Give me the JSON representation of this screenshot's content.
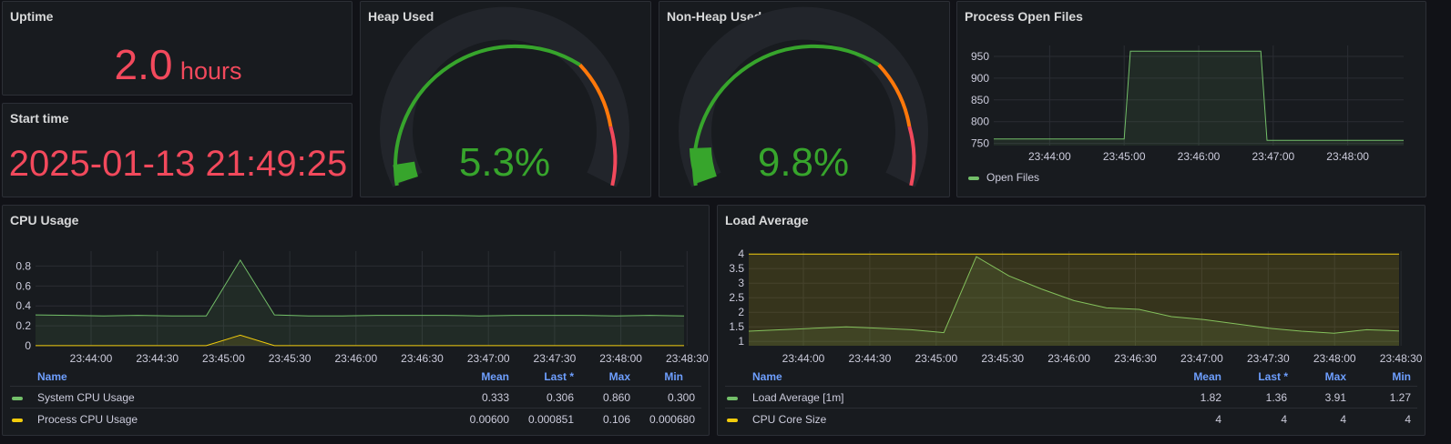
{
  "uptime": {
    "title": "Uptime",
    "value": "2.0",
    "unit": "hours"
  },
  "start_time": {
    "title": "Start time",
    "value": "2025-01-13 21:49:25"
  },
  "heap": {
    "title": "Heap Used",
    "value": "5.3%"
  },
  "nonheap": {
    "title": "Non-Heap Used",
    "value": "9.8%"
  },
  "colors": {
    "green": "#37a52c",
    "red": "#f2495c",
    "yellow": "#f2cc0c",
    "blue": "#6e9fff",
    "orange": "#ff780a"
  },
  "open_files": {
    "title": "Process Open Files",
    "legend": "Open Files",
    "chart_data": {
      "type": "line",
      "y_ticks": [
        "950",
        "900",
        "850",
        "800",
        "750"
      ],
      "x_ticks": [
        "23:44:00",
        "23:45:00",
        "23:46:00",
        "23:47:00",
        "23:48:00"
      ],
      "series": [
        {
          "name": "Open Files",
          "x": [
            "23:43:15",
            "23:45:00",
            "23:45:05",
            "23:45:50",
            "23:46:50",
            "23:46:55",
            "23:48:45"
          ],
          "values": [
            760,
            760,
            962,
            962,
            962,
            757,
            757
          ]
        }
      ],
      "ylim": [
        745,
        975
      ]
    }
  },
  "cpu": {
    "title": "CPU Usage",
    "chart_data": {
      "type": "area",
      "y_ticks": [
        "0.8",
        "0.6",
        "0.4",
        "0.2",
        "0"
      ],
      "x_ticks": [
        "23:44:00",
        "23:44:30",
        "23:45:00",
        "23:45:30",
        "23:46:00",
        "23:46:30",
        "23:47:00",
        "23:47:30",
        "23:48:00",
        "23:48:30"
      ],
      "series": [
        {
          "name": "System CPU Usage",
          "values": [
            0.31,
            0.305,
            0.3,
            0.305,
            0.3,
            0.3,
            0.86,
            0.31,
            0.3,
            0.3,
            0.305,
            0.305,
            0.305,
            0.3,
            0.305,
            0.305,
            0.305,
            0.3,
            0.305,
            0.3
          ]
        },
        {
          "name": "Process CPU Usage",
          "values": [
            0.001,
            0.001,
            0.001,
            0.001,
            0.001,
            0.001,
            0.106,
            0.001,
            0.001,
            0.001,
            0.001,
            0.001,
            0.001,
            0.001,
            0.001,
            0.001,
            0.001,
            0.001,
            0.001,
            0.001
          ]
        }
      ],
      "ylim": [
        0,
        0.95
      ]
    },
    "table": {
      "headers": {
        "name": "Name",
        "mean": "Mean",
        "last": "Last *",
        "max": "Max",
        "min": "Min"
      },
      "rows": [
        {
          "name": "System CPU Usage",
          "mean": "0.333",
          "last": "0.306",
          "max": "0.860",
          "min": "0.300"
        },
        {
          "name": "Process CPU Usage",
          "mean": "0.00600",
          "last": "0.000851",
          "max": "0.106",
          "min": "0.000680"
        }
      ]
    }
  },
  "load": {
    "title": "Load Average",
    "chart_data": {
      "type": "area",
      "y_ticks": [
        "4",
        "3.5",
        "3",
        "2.5",
        "2",
        "1.5",
        "1"
      ],
      "x_ticks": [
        "23:44:00",
        "23:44:30",
        "23:45:00",
        "23:45:30",
        "23:46:00",
        "23:46:30",
        "23:47:00",
        "23:47:30",
        "23:48:00",
        "23:48:30"
      ],
      "series": [
        {
          "name": "Load Average [1m]",
          "values": [
            1.35,
            1.4,
            1.45,
            1.5,
            1.45,
            1.4,
            1.3,
            3.91,
            3.25,
            2.8,
            2.4,
            2.15,
            2.1,
            1.85,
            1.75,
            1.6,
            1.45,
            1.35,
            1.28,
            1.4,
            1.36
          ]
        },
        {
          "name": "CPU Core Size",
          "values": [
            4,
            4,
            4,
            4,
            4,
            4,
            4,
            4,
            4,
            4,
            4,
            4,
            4,
            4,
            4,
            4,
            4,
            4,
            4,
            4,
            4
          ]
        }
      ],
      "ylim": [
        0.85,
        4.1
      ]
    },
    "table": {
      "headers": {
        "name": "Name",
        "mean": "Mean",
        "last": "Last *",
        "max": "Max",
        "min": "Min"
      },
      "rows": [
        {
          "name": "Load Average [1m]",
          "mean": "1.82",
          "last": "1.36",
          "max": "3.91",
          "min": "1.27"
        },
        {
          "name": "CPU Core Size",
          "mean": "4",
          "last": "4",
          "max": "4",
          "min": "4"
        }
      ]
    }
  }
}
